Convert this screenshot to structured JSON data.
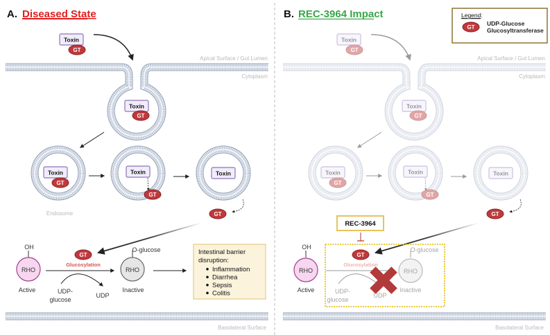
{
  "common": {
    "toxin_label": "Toxin",
    "gt_label": "GT"
  },
  "panel_a": {
    "letter": "A.",
    "title": "Diseased State",
    "title_color": "#e02020",
    "apical_label": "Apical Surface / Gut Lumen",
    "cytoplasm_label": "Cytoplasm",
    "endosome_label": "Endosome",
    "basolateral_label": "Basolateral Surface",
    "oh_label": "OH",
    "rho_label": "RHO",
    "active_label": "Active",
    "glucosylation_label": "Glucosylation",
    "o_glucose_label": "O-glucose",
    "inactive_label": "Inactive",
    "udp_glucose_label_1": "UDP-",
    "udp_glucose_label_2": "glucose",
    "udp_label": "UDP",
    "outcome_box": {
      "heading_1": "Intestinal barrier",
      "heading_2": "disruption:",
      "items": [
        "Inflammation",
        "Diarrhea",
        "Sepsis",
        "Colitis"
      ]
    }
  },
  "panel_b": {
    "letter": "B.",
    "title": "REC-3964 Impact",
    "title_color": "#3aa64a",
    "apical_label": "Apical Surface / Gut Lumen",
    "cytoplasm_label": "Cytoplasm",
    "basolateral_label": "Basolateral Surface",
    "inhibitor_label": "REC-3964",
    "oh_label": "OH",
    "rho_label": "RHO",
    "active_label": "Active",
    "glucosylation_label": "Glucosylation",
    "o_glucose_label": "O-glucose",
    "inactive_label": "Inactive",
    "udp_glucose_label_1": "UDP-",
    "udp_glucose_label_2": "glucose",
    "udp_label": "UDP",
    "blocked_icon": "red-x-icon"
  },
  "legend": {
    "title": "Legend",
    "title_suffix": ":",
    "gt_label": "GT",
    "description_1": "UDP-Glucose",
    "description_2": "Glucosyltransferase"
  },
  "colors": {
    "gt": "#c0393b",
    "toxin_border": "#8c74b8",
    "membrane": "#8e9bb0",
    "rho_active": "#f7d6ef",
    "rho_inactive": "#e6e6e6",
    "outcome_box": "#fbf3dc",
    "inhibitor_border": "#e8c25e",
    "legend_border": "#8b7330"
  }
}
